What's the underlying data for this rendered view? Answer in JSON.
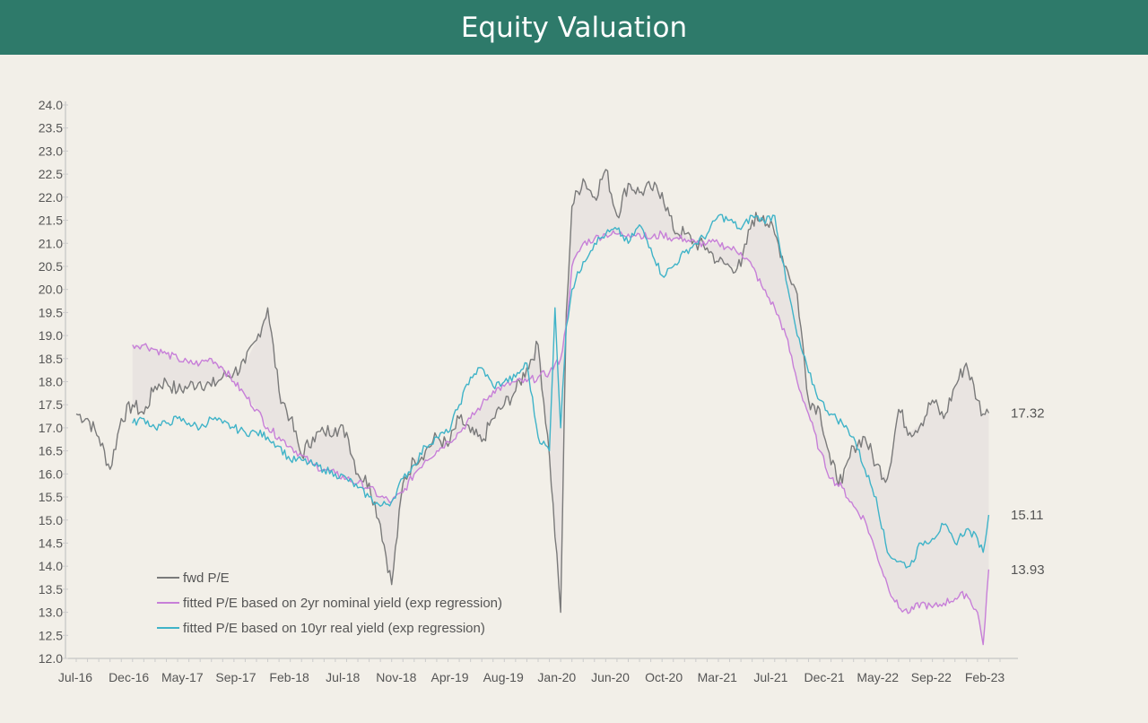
{
  "header": {
    "title": "Equity Valuation"
  },
  "chart_data": {
    "type": "line",
    "title": "Equity Valuation",
    "xlabel": "",
    "ylabel": "",
    "ylim": [
      12.0,
      24.0
    ],
    "yticks": [
      "24.0",
      "23.5",
      "23.0",
      "22.5",
      "22.0",
      "21.5",
      "21.0",
      "20.5",
      "20.0",
      "19.5",
      "19.0",
      "18.5",
      "18.0",
      "17.5",
      "17.0",
      "16.5",
      "16.0",
      "15.5",
      "15.0",
      "14.5",
      "14.0",
      "13.5",
      "13.0",
      "12.5",
      "12.0"
    ],
    "x_tick_labels": [
      "Jul-16",
      "Dec-16",
      "May-17",
      "Sep-17",
      "Feb-18",
      "Jul-18",
      "Nov-18",
      "Apr-19",
      "Aug-19",
      "Jan-20",
      "Jun-20",
      "Oct-20",
      "Mar-21",
      "Jul-21",
      "Dec-21",
      "May-22",
      "Sep-22",
      "Feb-23"
    ],
    "x_range_months": [
      0,
      82
    ],
    "series": [
      {
        "name": "fwd P/E",
        "color": "#7a7a7a",
        "end_label": "17.32",
        "x": [
          0,
          1,
          2,
          3,
          4,
          5,
          6,
          7,
          8,
          9,
          10,
          11,
          12,
          13,
          14,
          15,
          16,
          17,
          18,
          19,
          20,
          21,
          22,
          23,
          24,
          25,
          26,
          27,
          28,
          29,
          30,
          31,
          32,
          33,
          34,
          35,
          36,
          37,
          38,
          39,
          40,
          41,
          42,
          43,
          43.5,
          44,
          45,
          46,
          47,
          48,
          49,
          50,
          51,
          52,
          53,
          54,
          55,
          56,
          57,
          58,
          59,
          60,
          61,
          62,
          63,
          64,
          65,
          66,
          67,
          68,
          69,
          70,
          71,
          72,
          73,
          74,
          75,
          76,
          77,
          78,
          79,
          80,
          80.5,
          81
        ],
        "values": [
          17.3,
          17.2,
          16.8,
          16.1,
          17.2,
          17.5,
          17.3,
          17.9,
          18.0,
          17.8,
          17.9,
          18.0,
          17.9,
          18.1,
          18.2,
          18.4,
          18.9,
          19.6,
          17.8,
          17.2,
          16.4,
          16.8,
          16.9,
          17.0,
          16.9,
          16.0,
          15.8,
          14.9,
          13.6,
          15.8,
          16.3,
          16.5,
          16.8,
          16.6,
          17.2,
          16.9,
          16.7,
          17.2,
          17.5,
          17.8,
          18.3,
          18.8,
          16.4,
          13.0,
          19.5,
          21.8,
          22.4,
          22.0,
          22.6,
          21.6,
          22.3,
          22.1,
          22.2,
          22.1,
          21.3,
          21.2,
          21.0,
          20.9,
          20.6,
          20.5,
          20.5,
          21.5,
          21.6,
          21.2,
          20.5,
          19.9,
          17.6,
          17.4,
          16.2,
          15.8,
          16.6,
          16.8,
          16.2,
          15.9,
          17.4,
          16.9,
          17.1,
          17.6,
          17.2,
          17.9,
          18.4,
          17.6,
          17.3,
          17.32
        ]
      },
      {
        "name": "fitted P/E based on 2yr nominal yield (exp regression)",
        "color": "#c77fd8",
        "end_label": "13.93",
        "x": [
          5,
          6,
          7,
          8,
          9,
          10,
          11,
          12,
          13,
          14,
          15,
          16,
          17,
          18,
          19,
          20,
          21,
          22,
          23,
          24,
          25,
          26,
          27,
          28,
          29,
          30,
          31,
          32,
          33,
          34,
          35,
          36,
          37,
          38,
          39,
          40,
          41,
          42,
          43,
          43.5,
          44,
          45,
          46,
          47,
          48,
          49,
          50,
          51,
          52,
          53,
          54,
          55,
          56,
          57,
          58,
          59,
          60,
          61,
          62,
          63,
          64,
          65,
          66,
          67,
          68,
          69,
          70,
          71,
          72,
          73,
          74,
          75,
          76,
          77,
          78,
          79,
          80,
          80.5,
          81
        ],
        "values": [
          18.8,
          18.8,
          18.7,
          18.6,
          18.5,
          18.4,
          18.4,
          18.5,
          18.3,
          18.0,
          17.7,
          17.4,
          17.0,
          16.8,
          16.6,
          16.4,
          16.2,
          16.1,
          16.0,
          15.9,
          15.8,
          15.7,
          15.5,
          15.4,
          15.6,
          16.0,
          16.3,
          16.5,
          16.7,
          16.9,
          17.2,
          17.5,
          17.8,
          17.9,
          18.0,
          18.0,
          18.1,
          18.2,
          18.5,
          19.2,
          20.5,
          21.0,
          21.1,
          21.2,
          21.2,
          21.2,
          21.2,
          21.1,
          21.2,
          21.1,
          21.1,
          21.0,
          21.0,
          21.0,
          20.9,
          20.8,
          20.5,
          20.0,
          19.6,
          19.0,
          18.0,
          17.3,
          16.5,
          15.9,
          15.7,
          15.3,
          15.0,
          14.3,
          13.6,
          13.1,
          13.0,
          13.2,
          13.1,
          13.2,
          13.3,
          13.4,
          13.0,
          12.3,
          13.93
        ]
      },
      {
        "name": "fitted P/E based on 10yr real yield (exp regression)",
        "color": "#3fb3c8",
        "end_label": "15.11",
        "x": [
          5,
          6,
          7,
          8,
          9,
          10,
          11,
          12,
          13,
          14,
          15,
          16,
          17,
          18,
          19,
          20,
          21,
          22,
          23,
          24,
          25,
          26,
          27,
          28,
          29,
          30,
          31,
          32,
          33,
          34,
          35,
          36,
          37,
          38,
          39,
          40,
          41,
          42,
          42.5,
          43,
          43.5,
          44,
          45,
          46,
          47,
          48,
          49,
          50,
          51,
          52,
          53,
          54,
          55,
          56,
          57,
          58,
          59,
          60,
          61,
          62,
          63,
          64,
          65,
          66,
          67,
          68,
          69,
          70,
          71,
          72,
          73,
          74,
          75,
          76,
          77,
          78,
          79,
          80,
          80.5,
          81
        ],
        "values": [
          17.1,
          17.2,
          17.0,
          17.1,
          17.2,
          17.1,
          17.0,
          17.2,
          17.1,
          17.0,
          16.9,
          16.9,
          16.8,
          16.6,
          16.3,
          16.3,
          16.2,
          16.1,
          16.0,
          15.9,
          15.7,
          15.5,
          15.3,
          15.4,
          15.9,
          16.2,
          16.6,
          16.8,
          16.9,
          17.5,
          18.1,
          18.3,
          17.9,
          18.0,
          18.1,
          18.4,
          16.8,
          16.5,
          19.6,
          17.0,
          19.2,
          20.0,
          20.6,
          21.0,
          21.2,
          21.3,
          21.0,
          21.4,
          20.9,
          20.3,
          20.5,
          20.8,
          21.0,
          21.2,
          21.6,
          21.5,
          21.3,
          21.6,
          21.5,
          21.6,
          20.2,
          19.0,
          18.2,
          17.6,
          17.3,
          17.1,
          16.8,
          16.1,
          15.5,
          14.3,
          14.1,
          14.0,
          14.5,
          14.6,
          14.9,
          14.5,
          14.8,
          14.6,
          14.3,
          15.11
        ]
      }
    ],
    "legend": [
      "fwd P/E",
      "fitted P/E based on 2yr nominal yield (exp regression)",
      "fitted P/E based on 10yr real yield (exp regression)"
    ],
    "legend_position": "bottom-left",
    "grid": false
  }
}
